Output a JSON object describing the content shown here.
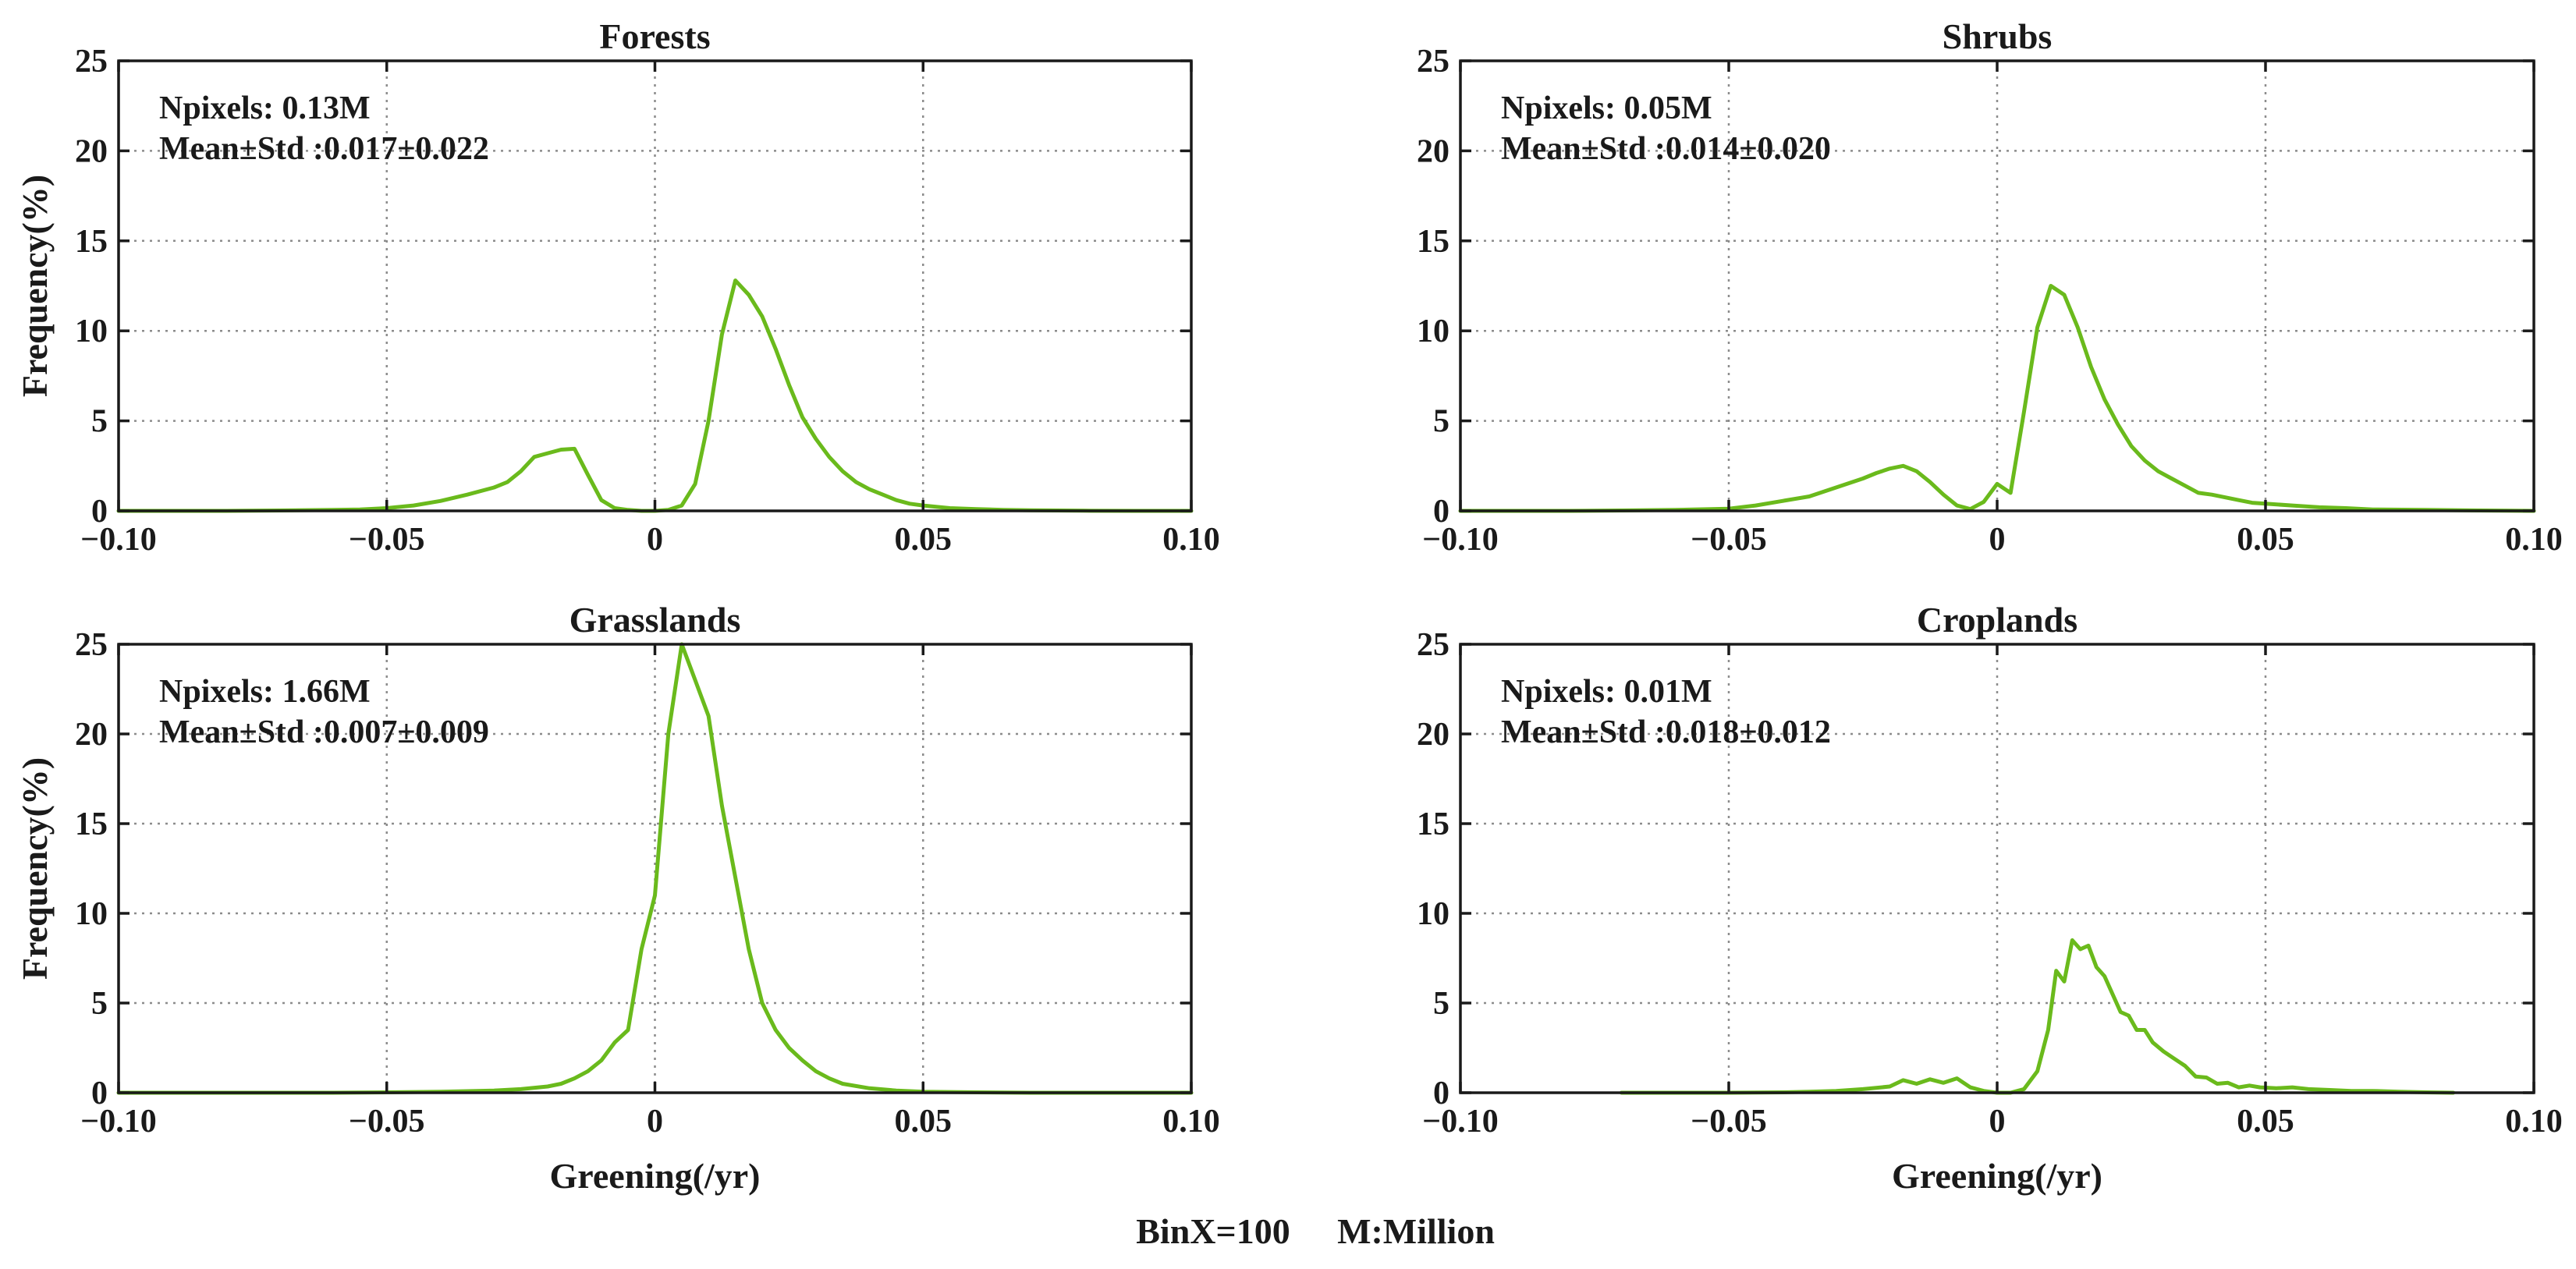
{
  "chart_data": [
    {
      "type": "line",
      "title": "Forests",
      "xlabel": "",
      "ylabel": "Frequency(%)",
      "xlim": [
        -0.1,
        0.1
      ],
      "ylim": [
        0,
        25
      ],
      "xticks": [
        -0.1,
        -0.05,
        0,
        0.05,
        0.1
      ],
      "xtick_labels": [
        "−0.10",
        "−0.05",
        "0",
        "0.05",
        "0.10"
      ],
      "yticks": [
        0,
        5,
        10,
        15,
        20,
        25
      ],
      "ytick_labels": [
        "0",
        "5",
        "10",
        "15",
        "20",
        "25"
      ],
      "grid": true,
      "annotations": [
        "Npixels: 0.13M",
        "Mean±Std :0.017±0.022"
      ],
      "series": [
        {
          "name": "Forests",
          "color": "#6aba1c",
          "x": [
            -0.1,
            -0.09,
            -0.08,
            -0.07,
            -0.06,
            -0.055,
            -0.05,
            -0.045,
            -0.04,
            -0.035,
            -0.03,
            -0.0275,
            -0.025,
            -0.0225,
            -0.02,
            -0.0175,
            -0.015,
            -0.0125,
            -0.01,
            -0.0075,
            -0.005,
            -0.0025,
            0.0,
            0.0025,
            0.005,
            0.0075,
            0.01,
            0.0125,
            0.015,
            0.0175,
            0.02,
            0.0225,
            0.025,
            0.0275,
            0.03,
            0.0325,
            0.035,
            0.0375,
            0.04,
            0.0425,
            0.045,
            0.0475,
            0.05,
            0.055,
            0.06,
            0.065,
            0.07,
            0.08,
            0.09,
            0.1
          ],
          "y": [
            0.0,
            0.0,
            0.0,
            0.02,
            0.05,
            0.08,
            0.15,
            0.3,
            0.55,
            0.9,
            1.3,
            1.6,
            2.2,
            3.0,
            3.2,
            3.4,
            3.45,
            2.0,
            0.6,
            0.15,
            0.05,
            0.0,
            0.0,
            0.05,
            0.3,
            1.5,
            5.0,
            9.8,
            12.8,
            12.0,
            10.8,
            9.0,
            7.0,
            5.2,
            4.0,
            3.0,
            2.2,
            1.6,
            1.2,
            0.9,
            0.6,
            0.4,
            0.3,
            0.15,
            0.1,
            0.05,
            0.03,
            0.01,
            0.0,
            0.0
          ]
        }
      ]
    },
    {
      "type": "line",
      "title": "Shrubs",
      "xlabel": "",
      "ylabel": "",
      "xlim": [
        -0.1,
        0.1
      ],
      "ylim": [
        0,
        25
      ],
      "xticks": [
        -0.1,
        -0.05,
        0,
        0.05,
        0.1
      ],
      "xtick_labels": [
        "−0.10",
        "−0.05",
        "0",
        "0.05",
        "0.10"
      ],
      "yticks": [
        0,
        5,
        10,
        15,
        20,
        25
      ],
      "ytick_labels": [
        "0",
        "5",
        "10",
        "15",
        "20",
        "25"
      ],
      "grid": true,
      "annotations": [
        "Npixels: 0.05M",
        "Mean±Std :0.014±0.020"
      ],
      "series": [
        {
          "name": "Shrubs",
          "color": "#6aba1c",
          "x": [
            -0.1,
            -0.09,
            -0.08,
            -0.07,
            -0.06,
            -0.05,
            -0.045,
            -0.04,
            -0.035,
            -0.03,
            -0.025,
            -0.0225,
            -0.02,
            -0.0175,
            -0.015,
            -0.0125,
            -0.01,
            -0.0075,
            -0.005,
            -0.0025,
            0.0,
            0.0025,
            0.005,
            0.0075,
            0.01,
            0.0125,
            0.015,
            0.0175,
            0.02,
            0.0225,
            0.025,
            0.0275,
            0.03,
            0.0325,
            0.035,
            0.0375,
            0.04,
            0.0425,
            0.045,
            0.0475,
            0.05,
            0.055,
            0.06,
            0.065,
            0.07,
            0.08,
            0.09,
            0.1
          ],
          "y": [
            0.0,
            0.0,
            0.0,
            0.02,
            0.05,
            0.12,
            0.3,
            0.55,
            0.8,
            1.3,
            1.8,
            2.1,
            2.35,
            2.5,
            2.2,
            1.6,
            0.9,
            0.3,
            0.1,
            0.5,
            1.5,
            1.0,
            5.5,
            10.2,
            12.5,
            12.0,
            10.2,
            8.0,
            6.2,
            4.8,
            3.6,
            2.8,
            2.2,
            1.8,
            1.4,
            1.0,
            0.9,
            0.75,
            0.6,
            0.45,
            0.4,
            0.3,
            0.2,
            0.15,
            0.08,
            0.05,
            0.02,
            0.0
          ]
        }
      ]
    },
    {
      "type": "line",
      "title": "Grasslands",
      "xlabel": "Greening(/yr)",
      "ylabel": "Frequency(%)",
      "xlim": [
        -0.1,
        0.1
      ],
      "ylim": [
        0,
        25
      ],
      "xticks": [
        -0.1,
        -0.05,
        0,
        0.05,
        0.1
      ],
      "xtick_labels": [
        "−0.10",
        "−0.05",
        "0",
        "0.05",
        "0.10"
      ],
      "yticks": [
        0,
        5,
        10,
        15,
        20,
        25
      ],
      "ytick_labels": [
        "0",
        "5",
        "10",
        "15",
        "20",
        "25"
      ],
      "grid": true,
      "annotations": [
        "Npixels: 1.66M",
        "Mean±Std :0.007±0.009"
      ],
      "series": [
        {
          "name": "Grasslands",
          "color": "#6aba1c",
          "x": [
            -0.1,
            -0.08,
            -0.06,
            -0.05,
            -0.04,
            -0.03,
            -0.025,
            -0.02,
            -0.0175,
            -0.015,
            -0.0125,
            -0.01,
            -0.0075,
            -0.005,
            -0.0025,
            0.0,
            0.0025,
            0.005,
            0.0075,
            0.01,
            0.0125,
            0.015,
            0.0175,
            0.02,
            0.0225,
            0.025,
            0.0275,
            0.03,
            0.0325,
            0.035,
            0.04,
            0.045,
            0.05,
            0.06,
            0.07,
            0.08,
            0.1
          ],
          "y": [
            0.0,
            0.0,
            0.0,
            0.02,
            0.05,
            0.12,
            0.2,
            0.35,
            0.5,
            0.8,
            1.2,
            1.8,
            2.8,
            3.5,
            8.0,
            11.0,
            20.0,
            25.0,
            23.0,
            21.0,
            16.0,
            12.0,
            8.0,
            5.0,
            3.5,
            2.5,
            1.8,
            1.2,
            0.8,
            0.5,
            0.25,
            0.12,
            0.05,
            0.02,
            0.0,
            0.0,
            0.0
          ]
        }
      ]
    },
    {
      "type": "line",
      "title": "Croplands",
      "xlabel": "Greening(/yr)",
      "ylabel": "",
      "xlim": [
        -0.1,
        0.1
      ],
      "ylim": [
        0,
        25
      ],
      "xticks": [
        -0.1,
        -0.05,
        0,
        0.05,
        0.1
      ],
      "xtick_labels": [
        "−0.10",
        "−0.05",
        "0",
        "0.05",
        "0.10"
      ],
      "yticks": [
        0,
        5,
        10,
        15,
        20,
        25
      ],
      "ytick_labels": [
        "0",
        "5",
        "10",
        "15",
        "20",
        "25"
      ],
      "grid": true,
      "annotations": [
        "Npixels: 0.01M",
        "Mean±Std :0.018±0.012"
      ],
      "series": [
        {
          "name": "Croplands",
          "color": "#6aba1c",
          "x": [
            -0.07,
            -0.06,
            -0.05,
            -0.04,
            -0.035,
            -0.03,
            -0.025,
            -0.02,
            -0.0175,
            -0.015,
            -0.0125,
            -0.01,
            -0.0075,
            -0.005,
            -0.0025,
            0.0,
            0.0025,
            0.005,
            0.0075,
            0.0095,
            0.011,
            0.0125,
            0.014,
            0.0155,
            0.017,
            0.0185,
            0.02,
            0.0215,
            0.023,
            0.0245,
            0.026,
            0.0275,
            0.029,
            0.031,
            0.033,
            0.035,
            0.037,
            0.039,
            0.041,
            0.043,
            0.045,
            0.047,
            0.049,
            0.052,
            0.055,
            0.058,
            0.062,
            0.066,
            0.07,
            0.075,
            0.08,
            0.085
          ],
          "y": [
            0.0,
            0.0,
            0.0,
            0.02,
            0.05,
            0.1,
            0.2,
            0.35,
            0.7,
            0.5,
            0.75,
            0.55,
            0.8,
            0.3,
            0.1,
            0.0,
            0.0,
            0.2,
            1.2,
            3.5,
            6.8,
            6.2,
            8.5,
            8.0,
            8.2,
            7.0,
            6.5,
            5.5,
            4.5,
            4.3,
            3.5,
            3.5,
            2.8,
            2.3,
            1.9,
            1.5,
            0.9,
            0.85,
            0.5,
            0.55,
            0.3,
            0.4,
            0.3,
            0.25,
            0.3,
            0.2,
            0.15,
            0.1,
            0.1,
            0.05,
            0.02,
            0.0
          ]
        }
      ]
    }
  ],
  "footer": {
    "binx": "BinX=100",
    "million": "M:Million"
  }
}
